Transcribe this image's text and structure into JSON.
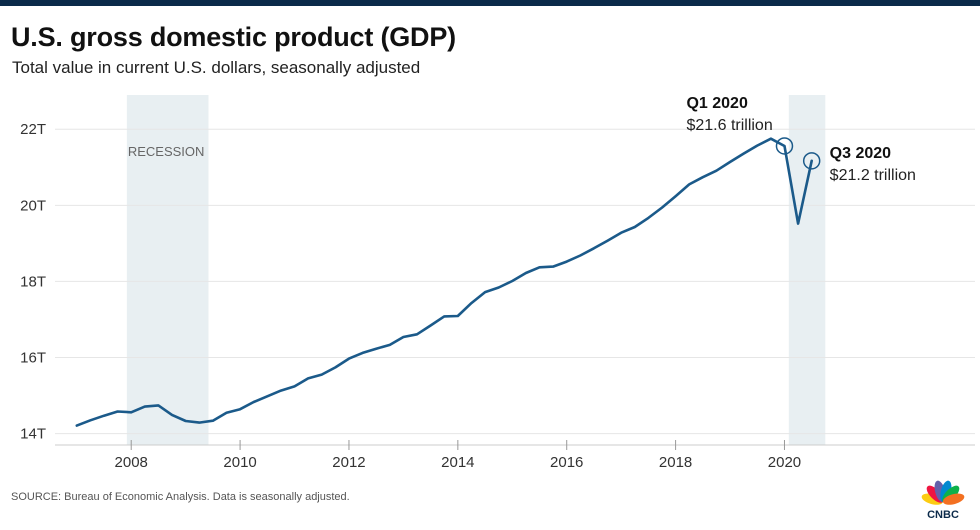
{
  "header": {
    "title": "U.S. gross domestic product (GDP)",
    "subtitle": "Total value in current U.S. dollars, seasonally adjusted"
  },
  "footer": {
    "source": "SOURCE: Bureau of Economic Analysis. Data is seasonally adjusted."
  },
  "brand": {
    "logo_text": "CNBC"
  },
  "colors": {
    "line": "#1b5a8a",
    "recession_band": "#e8eff2",
    "grid": "#e6e6e6",
    "tick_text": "#333333",
    "header_bar": "#0b2a4a"
  },
  "chart_data": {
    "type": "line",
    "title": "U.S. gross domestic product (GDP)",
    "subtitle": "Total value in current U.S. dollars, seasonally adjusted",
    "xlabel": "",
    "ylabel": "",
    "y_ticks": [
      14,
      16,
      18,
      20,
      22
    ],
    "y_tick_labels": [
      "14T",
      "16T",
      "18T",
      "20T",
      "22T"
    ],
    "x_ticks": [
      2008,
      2010,
      2012,
      2014,
      2016,
      2018,
      2020
    ],
    "x_tick_labels": [
      "2008",
      "2010",
      "2012",
      "2014",
      "2016",
      "2018",
      "2020"
    ],
    "xlim": [
      2006.6,
      2023.5
    ],
    "ylim": [
      13.7,
      22.9
    ],
    "grid": true,
    "shaded_periods": [
      {
        "start": 2007.92,
        "end": 2009.42,
        "label": "RECESSION"
      },
      {
        "start": 2020.08,
        "end": 2020.75,
        "label": ""
      }
    ],
    "series": [
      {
        "x": [
          2007.0,
          2007.25,
          2007.5,
          2007.75,
          2008.0,
          2008.25,
          2008.5,
          2008.75,
          2009.0,
          2009.25,
          2009.5,
          2009.75,
          2010.0,
          2010.25,
          2010.5,
          2010.75,
          2011.0,
          2011.25,
          2011.5,
          2011.75,
          2012.0,
          2012.25,
          2012.5,
          2012.75,
          2013.0,
          2013.25,
          2013.5,
          2013.75,
          2014.0,
          2014.25,
          2014.5,
          2014.75,
          2015.0,
          2015.25,
          2015.5,
          2015.75,
          2016.0,
          2016.25,
          2016.5,
          2016.75,
          2017.0,
          2017.25,
          2017.5,
          2017.75,
          2018.0,
          2018.25,
          2018.5,
          2018.75,
          2019.0,
          2019.25,
          2019.5,
          2019.75,
          2020.0,
          2020.25,
          2020.5
        ],
        "values": [
          14.21,
          14.35,
          14.47,
          14.58,
          14.56,
          14.71,
          14.74,
          14.49,
          14.33,
          14.29,
          14.34,
          14.55,
          14.64,
          14.83,
          14.98,
          15.13,
          15.24,
          15.45,
          15.55,
          15.74,
          15.97,
          16.12,
          16.23,
          16.33,
          16.54,
          16.61,
          16.84,
          17.08,
          17.09,
          17.43,
          17.72,
          17.84,
          18.01,
          18.22,
          18.37,
          18.39,
          18.52,
          18.68,
          18.87,
          19.07,
          19.28,
          19.43,
          19.67,
          19.94,
          20.24,
          20.55,
          20.74,
          20.91,
          21.14,
          21.36,
          21.57,
          21.75,
          21.56,
          19.52,
          21.17
        ]
      }
    ],
    "annotations": [
      {
        "x": 2020.0,
        "y": 21.56,
        "label": "Q1 2020",
        "value": "$21.6 trillion"
      },
      {
        "x": 2020.5,
        "y": 21.17,
        "label": "Q3 2020",
        "value": "$21.2 trillion"
      }
    ]
  }
}
